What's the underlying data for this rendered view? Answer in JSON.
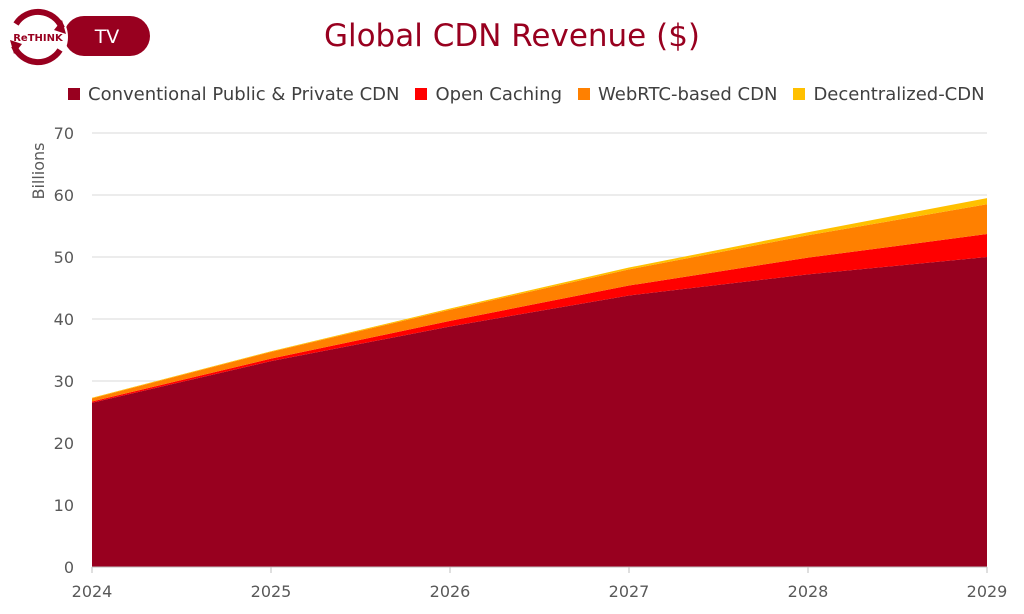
{
  "logo": {
    "brand": "ReTHINK",
    "badge": "TV"
  },
  "chart_data": {
    "type": "area",
    "stacked": true,
    "title": "Global CDN Revenue ($)",
    "ylabel": "Billions",
    "xlabel": "",
    "x": [
      "2024",
      "2025",
      "2026",
      "2027",
      "2028",
      "2029"
    ],
    "ylim": [
      0,
      70
    ],
    "yticks": [
      0,
      10,
      20,
      30,
      40,
      50,
      60,
      70
    ],
    "grid": true,
    "legend_position": "top",
    "series": [
      {
        "name": "Conventional Public & Private CDN",
        "color": "#98001f",
        "values": [
          26.5,
          33.2,
          38.8,
          43.8,
          47.2,
          50.0
        ]
      },
      {
        "name": "Open Caching",
        "color": "#ff0000",
        "values": [
          0.2,
          0.4,
          0.9,
          1.6,
          2.7,
          3.7
        ]
      },
      {
        "name": "WebRTC-based CDN",
        "color": "#ff8000",
        "values": [
          0.5,
          1.1,
          1.8,
          2.6,
          3.6,
          4.8
        ]
      },
      {
        "name": "Decentralized-CDN",
        "color": "#ffc000",
        "values": [
          0.1,
          0.1,
          0.2,
          0.3,
          0.5,
          1.0
        ]
      }
    ]
  }
}
